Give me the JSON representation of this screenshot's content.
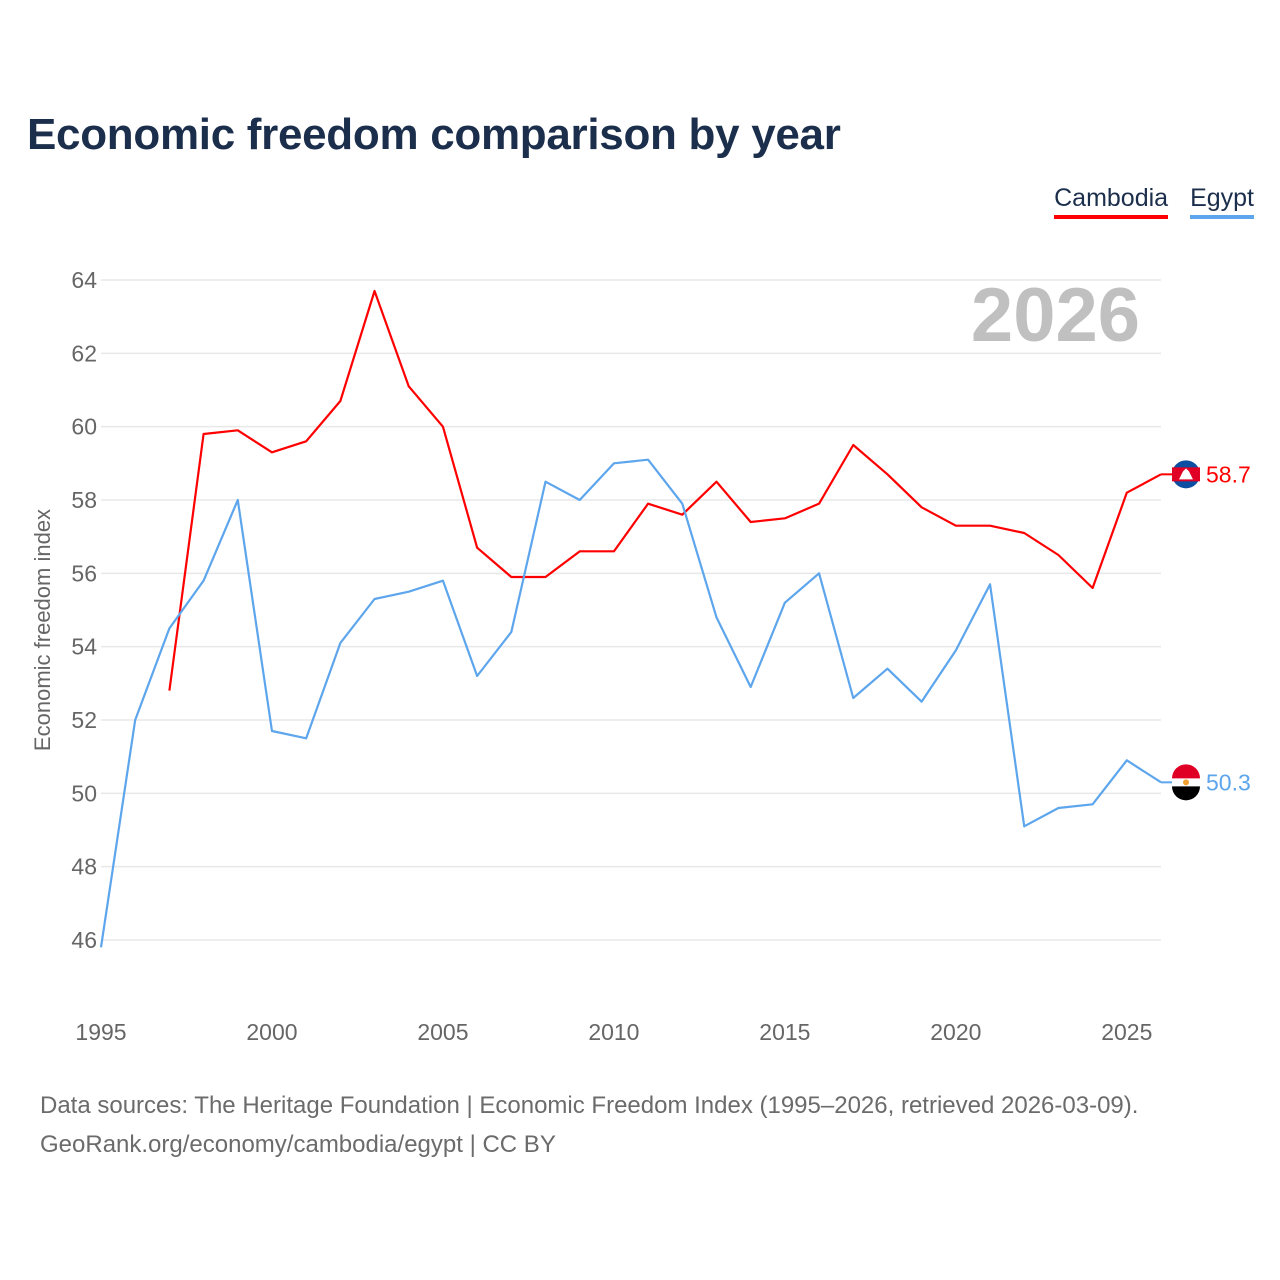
{
  "chart_data": {
    "type": "line",
    "title": "Economic freedom comparison by year",
    "xlabel": "",
    "ylabel": "Economic freedom index",
    "xlim": [
      1995,
      2026
    ],
    "ylim": [
      46,
      64
    ],
    "yticks": [
      46,
      48,
      50,
      52,
      54,
      56,
      58,
      60,
      62,
      64
    ],
    "xticks": [
      1995,
      2000,
      2005,
      2010,
      2015,
      2020,
      2025
    ],
    "grid": true,
    "legend_position": "top-right",
    "year_watermark": "2026",
    "series": [
      {
        "name": "Cambodia",
        "color": "#ff0000",
        "end_label": "58.7",
        "x": [
          1997,
          1998,
          1999,
          2000,
          2001,
          2002,
          2003,
          2004,
          2005,
          2006,
          2007,
          2008,
          2009,
          2010,
          2011,
          2012,
          2013,
          2014,
          2015,
          2016,
          2017,
          2018,
          2019,
          2020,
          2021,
          2022,
          2023,
          2024,
          2025,
          2026
        ],
        "values": [
          52.8,
          59.8,
          59.9,
          59.3,
          59.6,
          60.7,
          63.7,
          61.1,
          60.0,
          56.7,
          55.9,
          55.9,
          56.6,
          56.6,
          57.9,
          57.6,
          58.5,
          57.4,
          57.5,
          57.9,
          59.5,
          58.7,
          57.8,
          57.3,
          57.3,
          57.1,
          56.5,
          55.6,
          58.2,
          58.7
        ]
      },
      {
        "name": "Egypt",
        "color": "#5da5ec",
        "end_label": "50.3",
        "x": [
          1995,
          1996,
          1997,
          1998,
          1999,
          2000,
          2001,
          2002,
          2003,
          2004,
          2005,
          2006,
          2007,
          2008,
          2009,
          2010,
          2011,
          2012,
          2013,
          2014,
          2015,
          2016,
          2017,
          2018,
          2019,
          2020,
          2021,
          2022,
          2023,
          2024,
          2025,
          2026
        ],
        "values": [
          45.8,
          52.0,
          54.5,
          55.8,
          58.0,
          51.7,
          51.5,
          54.1,
          55.3,
          55.5,
          55.8,
          53.2,
          54.4,
          58.5,
          58.0,
          59.0,
          59.1,
          57.9,
          54.8,
          52.9,
          55.2,
          56.0,
          52.6,
          53.4,
          52.5,
          53.9,
          55.7,
          49.1,
          49.6,
          49.7,
          50.9,
          50.3
        ]
      }
    ]
  },
  "source": {
    "line1": "Data sources: The Heritage Foundation | Economic Freedom Index (1995–2026, retrieved 2026-03-09).",
    "line2": "GeoRank.org/economy/cambodia/egypt | CC BY"
  }
}
